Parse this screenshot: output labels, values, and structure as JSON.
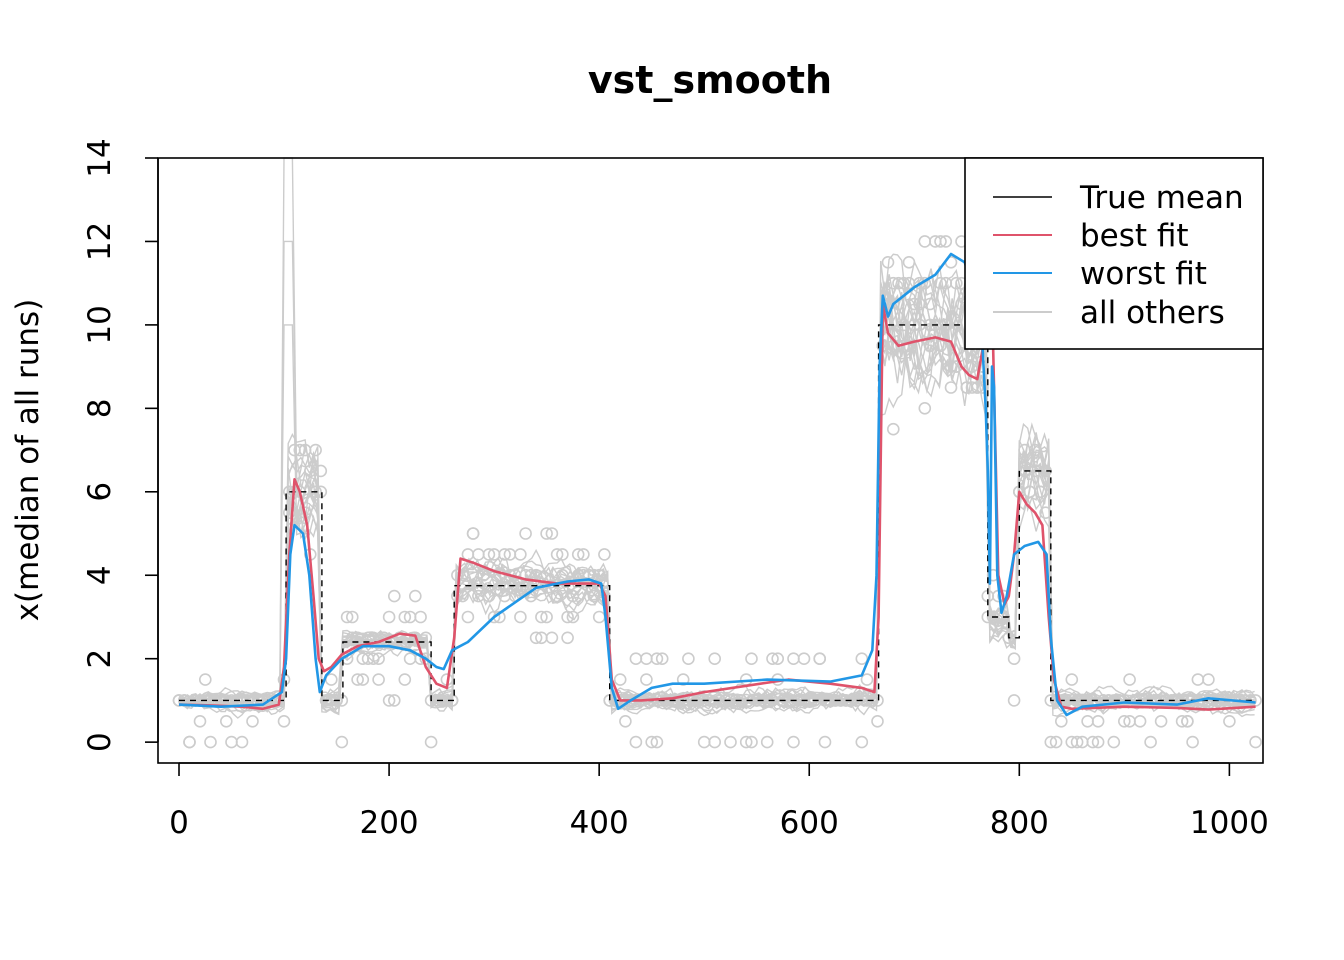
{
  "chart_data": {
    "type": "line",
    "title": "vst_smooth",
    "xlabel": "",
    "ylabel": "x(median of all runs)",
    "xlim": [
      -20,
      1032
    ],
    "ylim": [
      -0.5,
      14
    ],
    "xticks": [
      0,
      200,
      400,
      600,
      800,
      1000
    ],
    "yticks": [
      0,
      2,
      4,
      6,
      8,
      10,
      12,
      14
    ],
    "grid": false,
    "legend_position": "top-right",
    "legend": [
      {
        "label": "True mean",
        "color": "#000000"
      },
      {
        "label": "best fit",
        "color": "#DF536B"
      },
      {
        "label": "worst fit",
        "color": "#2297E6"
      },
      {
        "label": "all others",
        "color": "#CCCCCC"
      }
    ],
    "series": [
      {
        "name": "True mean",
        "color": "#000000",
        "style": "dashed-step",
        "points": [
          [
            0,
            1
          ],
          [
            102,
            1
          ],
          [
            102,
            6
          ],
          [
            136,
            6
          ],
          [
            136,
            1
          ],
          [
            156,
            1
          ],
          [
            156,
            2.4
          ],
          [
            240,
            2.4
          ],
          [
            240,
            1
          ],
          [
            262,
            1
          ],
          [
            262,
            3.75
          ],
          [
            410,
            3.75
          ],
          [
            410,
            1
          ],
          [
            666,
            1
          ],
          [
            666,
            10
          ],
          [
            770,
            10
          ],
          [
            770,
            3
          ],
          [
            790,
            3
          ],
          [
            790,
            2.5
          ],
          [
            800,
            2.5
          ],
          [
            800,
            6.5
          ],
          [
            830,
            6.5
          ],
          [
            830,
            1
          ],
          [
            1025,
            1
          ]
        ]
      },
      {
        "name": "best fit",
        "color": "#DF536B",
        "points": [
          [
            0,
            0.9
          ],
          [
            30,
            0.88
          ],
          [
            60,
            0.85
          ],
          [
            80,
            0.8
          ],
          [
            95,
            0.9
          ],
          [
            100,
            1.8
          ],
          [
            105,
            4.5
          ],
          [
            110,
            6.3
          ],
          [
            115,
            6.0
          ],
          [
            122,
            5.2
          ],
          [
            128,
            3.5
          ],
          [
            133,
            2.0
          ],
          [
            138,
            1.7
          ],
          [
            145,
            1.8
          ],
          [
            155,
            2.1
          ],
          [
            170,
            2.3
          ],
          [
            190,
            2.4
          ],
          [
            200,
            2.5
          ],
          [
            210,
            2.6
          ],
          [
            225,
            2.55
          ],
          [
            235,
            1.8
          ],
          [
            245,
            1.4
          ],
          [
            255,
            1.3
          ],
          [
            262,
            2.5
          ],
          [
            268,
            4.4
          ],
          [
            280,
            4.3
          ],
          [
            300,
            4.1
          ],
          [
            330,
            3.9
          ],
          [
            360,
            3.8
          ],
          [
            385,
            3.8
          ],
          [
            400,
            3.8
          ],
          [
            406,
            3.5
          ],
          [
            412,
            1.5
          ],
          [
            420,
            1.0
          ],
          [
            440,
            1.0
          ],
          [
            470,
            1.05
          ],
          [
            500,
            1.2
          ],
          [
            540,
            1.35
          ],
          [
            580,
            1.5
          ],
          [
            620,
            1.4
          ],
          [
            650,
            1.3
          ],
          [
            662,
            1.2
          ],
          [
            666,
            3.0
          ],
          [
            670,
            10.5
          ],
          [
            675,
            9.8
          ],
          [
            685,
            9.5
          ],
          [
            700,
            9.6
          ],
          [
            720,
            9.7
          ],
          [
            735,
            9.6
          ],
          [
            745,
            9.0
          ],
          [
            752,
            8.8
          ],
          [
            760,
            8.7
          ],
          [
            765,
            9.4
          ],
          [
            770,
            9.6
          ],
          [
            775,
            9.5
          ],
          [
            780,
            4.0
          ],
          [
            786,
            3.3
          ],
          [
            790,
            3.5
          ],
          [
            795,
            4.5
          ],
          [
            800,
            6.0
          ],
          [
            807,
            5.7
          ],
          [
            815,
            5.5
          ],
          [
            822,
            5.2
          ],
          [
            828,
            3.0
          ],
          [
            833,
            1.5
          ],
          [
            840,
            0.85
          ],
          [
            850,
            0.8
          ],
          [
            900,
            0.85
          ],
          [
            950,
            0.82
          ],
          [
            980,
            0.78
          ],
          [
            1025,
            0.85
          ]
        ]
      },
      {
        "name": "worst fit",
        "color": "#2297E6",
        "points": [
          [
            0,
            0.9
          ],
          [
            40,
            0.85
          ],
          [
            80,
            0.9
          ],
          [
            92,
            1.1
          ],
          [
            98,
            1.2
          ],
          [
            102,
            2.0
          ],
          [
            106,
            4.5
          ],
          [
            110,
            5.2
          ],
          [
            118,
            5.0
          ],
          [
            124,
            4.0
          ],
          [
            130,
            2.0
          ],
          [
            134,
            1.2
          ],
          [
            140,
            1.6
          ],
          [
            155,
            2.0
          ],
          [
            175,
            2.3
          ],
          [
            200,
            2.3
          ],
          [
            220,
            2.2
          ],
          [
            235,
            2.0
          ],
          [
            245,
            1.8
          ],
          [
            252,
            1.75
          ],
          [
            260,
            2.2
          ],
          [
            275,
            2.4
          ],
          [
            300,
            3.0
          ],
          [
            340,
            3.7
          ],
          [
            370,
            3.85
          ],
          [
            390,
            3.9
          ],
          [
            402,
            3.8
          ],
          [
            406,
            3.0
          ],
          [
            412,
            1.3
          ],
          [
            418,
            0.8
          ],
          [
            430,
            1.0
          ],
          [
            450,
            1.3
          ],
          [
            470,
            1.4
          ],
          [
            500,
            1.4
          ],
          [
            560,
            1.5
          ],
          [
            620,
            1.45
          ],
          [
            650,
            1.6
          ],
          [
            660,
            2.2
          ],
          [
            664,
            4.0
          ],
          [
            667,
            9.0
          ],
          [
            670,
            10.7
          ],
          [
            675,
            10.2
          ],
          [
            680,
            10.5
          ],
          [
            690,
            10.7
          ],
          [
            700,
            10.9
          ],
          [
            720,
            11.2
          ],
          [
            735,
            11.7
          ],
          [
            748,
            11.5
          ],
          [
            760,
            10.5
          ],
          [
            765,
            9.5
          ],
          [
            768,
            8.0
          ],
          [
            770,
            6.5
          ],
          [
            772,
            3.8
          ],
          [
            774,
            9.0
          ],
          [
            776,
            8.5
          ],
          [
            779,
            4.0
          ],
          [
            783,
            3.1
          ],
          [
            788,
            3.5
          ],
          [
            795,
            4.5
          ],
          [
            805,
            4.7
          ],
          [
            818,
            4.8
          ],
          [
            826,
            4.5
          ],
          [
            830,
            2.5
          ],
          [
            836,
            1.0
          ],
          [
            845,
            0.65
          ],
          [
            860,
            0.85
          ],
          [
            900,
            0.95
          ],
          [
            950,
            0.9
          ],
          [
            980,
            1.05
          ],
          [
            1025,
            0.95
          ]
        ]
      }
    ],
    "annotations": [
      "gray run lines ('all others') and gray open-circle observations overlaid around the true mean"
    ]
  }
}
